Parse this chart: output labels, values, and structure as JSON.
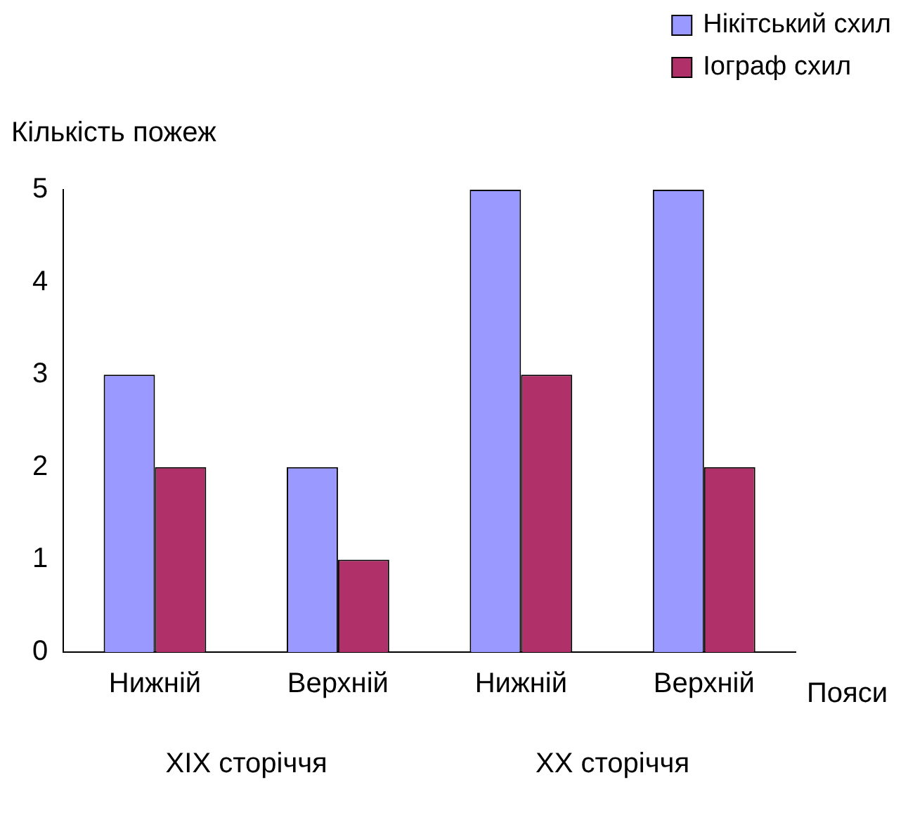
{
  "chart_data": {
    "type": "bar",
    "ylabel": "Кількість пожеж",
    "xlabel": "Пояси",
    "categories": [
      "Нижній",
      "Верхній",
      "Нижній",
      "Верхній"
    ],
    "series": [
      {
        "name": "Нікітський схил",
        "color": "#9999ff",
        "values": [
          3,
          2,
          5,
          5
        ]
      },
      {
        "name": "Іограф схил",
        "color": "#b0306a",
        "values": [
          2,
          1,
          3,
          2
        ]
      }
    ],
    "ylim": [
      0,
      5
    ],
    "yticks": [
      0,
      1,
      2,
      3,
      4,
      5
    ],
    "grid": false,
    "legend": "top right",
    "annotations": [
      "XIX сторіччя",
      "XX сторіччя"
    ]
  }
}
